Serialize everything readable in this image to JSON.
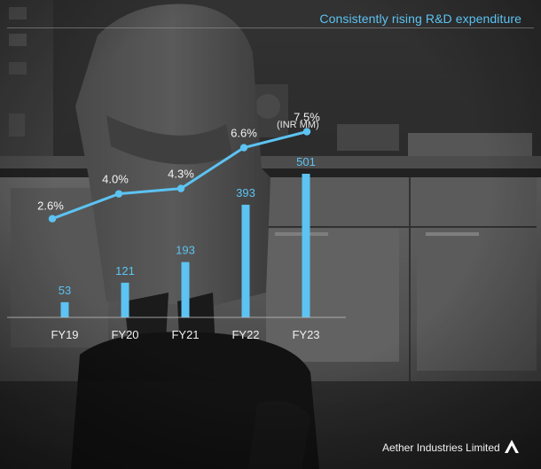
{
  "page": {
    "title": "Consistently rising R&D expenditure",
    "company": "Aether Industries Limited",
    "logo_icon": "aether-chevron-logo-icon"
  },
  "colors": {
    "accent": "#5cc3f2",
    "line": "#5cc3f2",
    "axis": "#bdbdbd",
    "text_light": "#f2f2f2"
  },
  "chart_data": {
    "type": "bar",
    "title": "Consistently rising R&D expenditure",
    "categories": [
      "FY19",
      "FY20",
      "FY21",
      "FY22",
      "FY23"
    ],
    "unit_label": "(INR MM)",
    "series": [
      {
        "type": "bar",
        "values": [
          53,
          121,
          193,
          393,
          501
        ],
        "labels": [
          "53",
          "121",
          "193",
          "393",
          "501"
        ]
      },
      {
        "type": "line",
        "values": [
          2.6,
          4.0,
          4.3,
          6.6,
          7.5
        ],
        "labels": [
          "2.6%",
          "4.0%",
          "4.3%",
          "6.6%",
          "7.5%"
        ]
      }
    ],
    "grid": false,
    "legend": "none"
  }
}
